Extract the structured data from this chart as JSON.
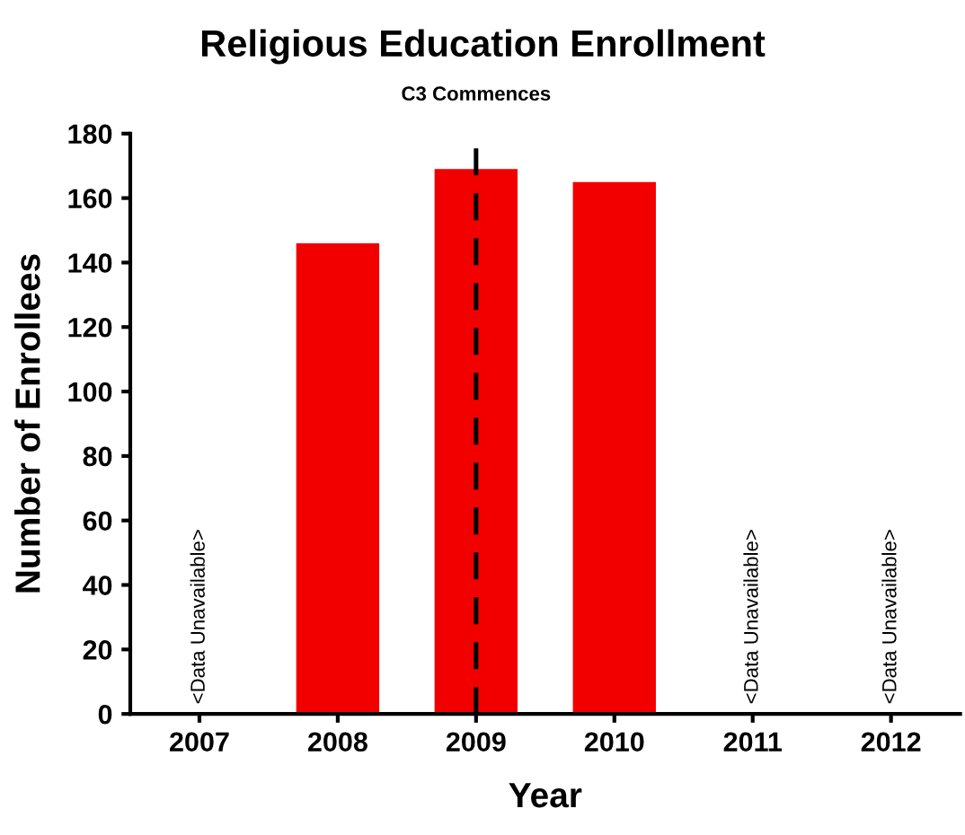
{
  "chart_data": {
    "type": "bar",
    "title": "Religious Education Enrollment",
    "xlabel": "Year",
    "ylabel": "Number of Enrollees",
    "categories": [
      "2007",
      "2008",
      "2009",
      "2010",
      "2011",
      "2012"
    ],
    "values": [
      null,
      146,
      169,
      165,
      null,
      null
    ],
    "color": "#f20000",
    "ylim": [
      0,
      180
    ],
    "yticks": [
      0,
      20,
      40,
      60,
      80,
      100,
      120,
      140,
      160,
      180
    ],
    "grid": false,
    "ref_lines": [
      {
        "axis": "x",
        "value": "2009",
        "label": "C3 Commences",
        "color": "#000000",
        "line_style": "dashed"
      }
    ],
    "annotations": [
      "<Data Unavailable>",
      "<Data Unavailable>",
      "<Data Unavailable>"
    ]
  }
}
